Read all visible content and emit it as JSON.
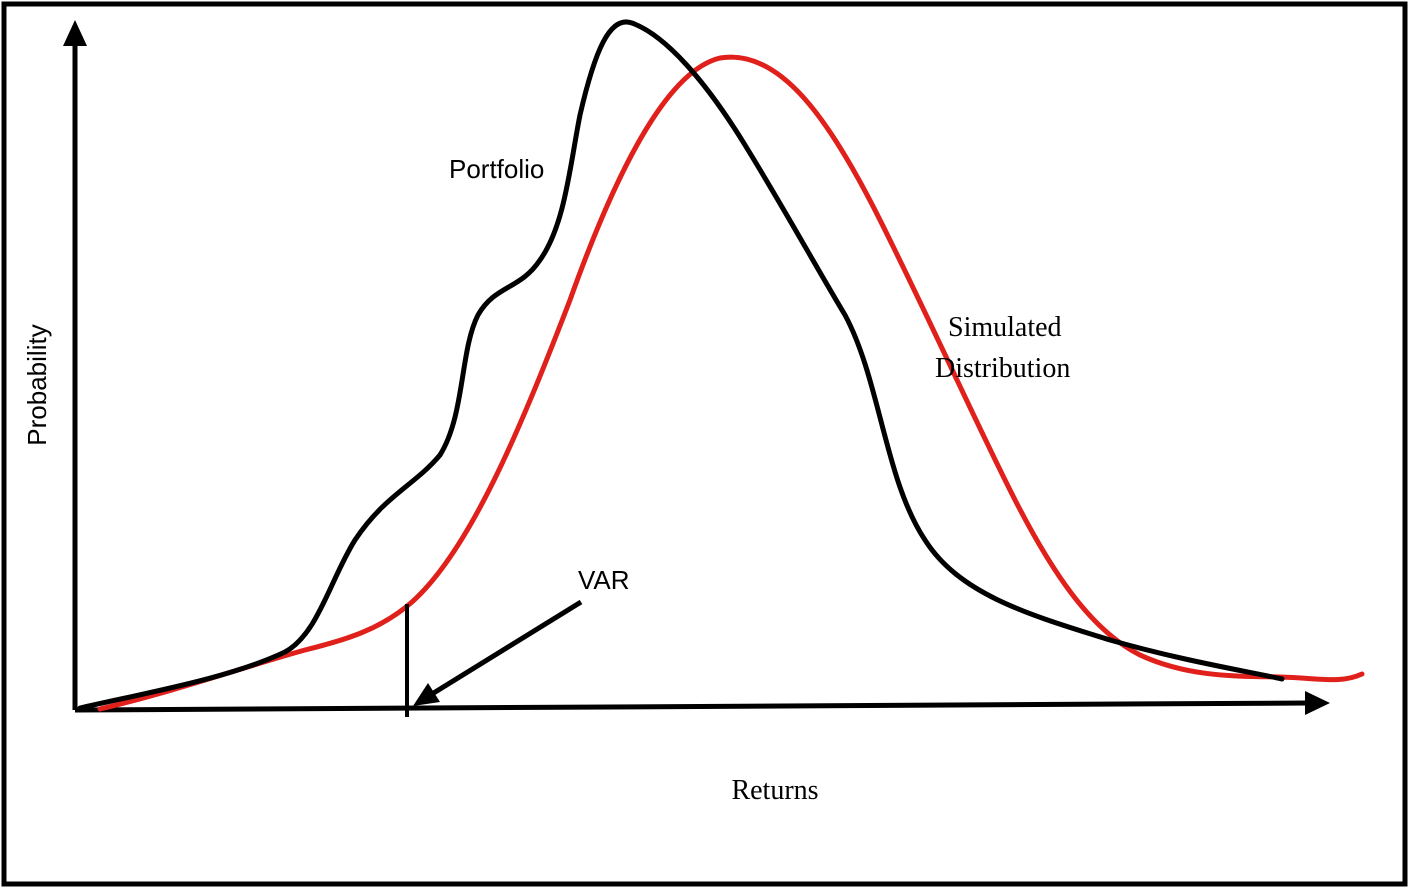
{
  "labels": {
    "y_axis": "Probability",
    "x_axis": "Returns",
    "portfolio": "Portfolio",
    "simulated_line1": "Simulated",
    "simulated_line2": "Distribution",
    "var": "VAR"
  },
  "colors": {
    "portfolio_curve": "#000000",
    "simulated_curve": "#e0201b",
    "axes": "#000000",
    "frame": "#000000"
  }
}
